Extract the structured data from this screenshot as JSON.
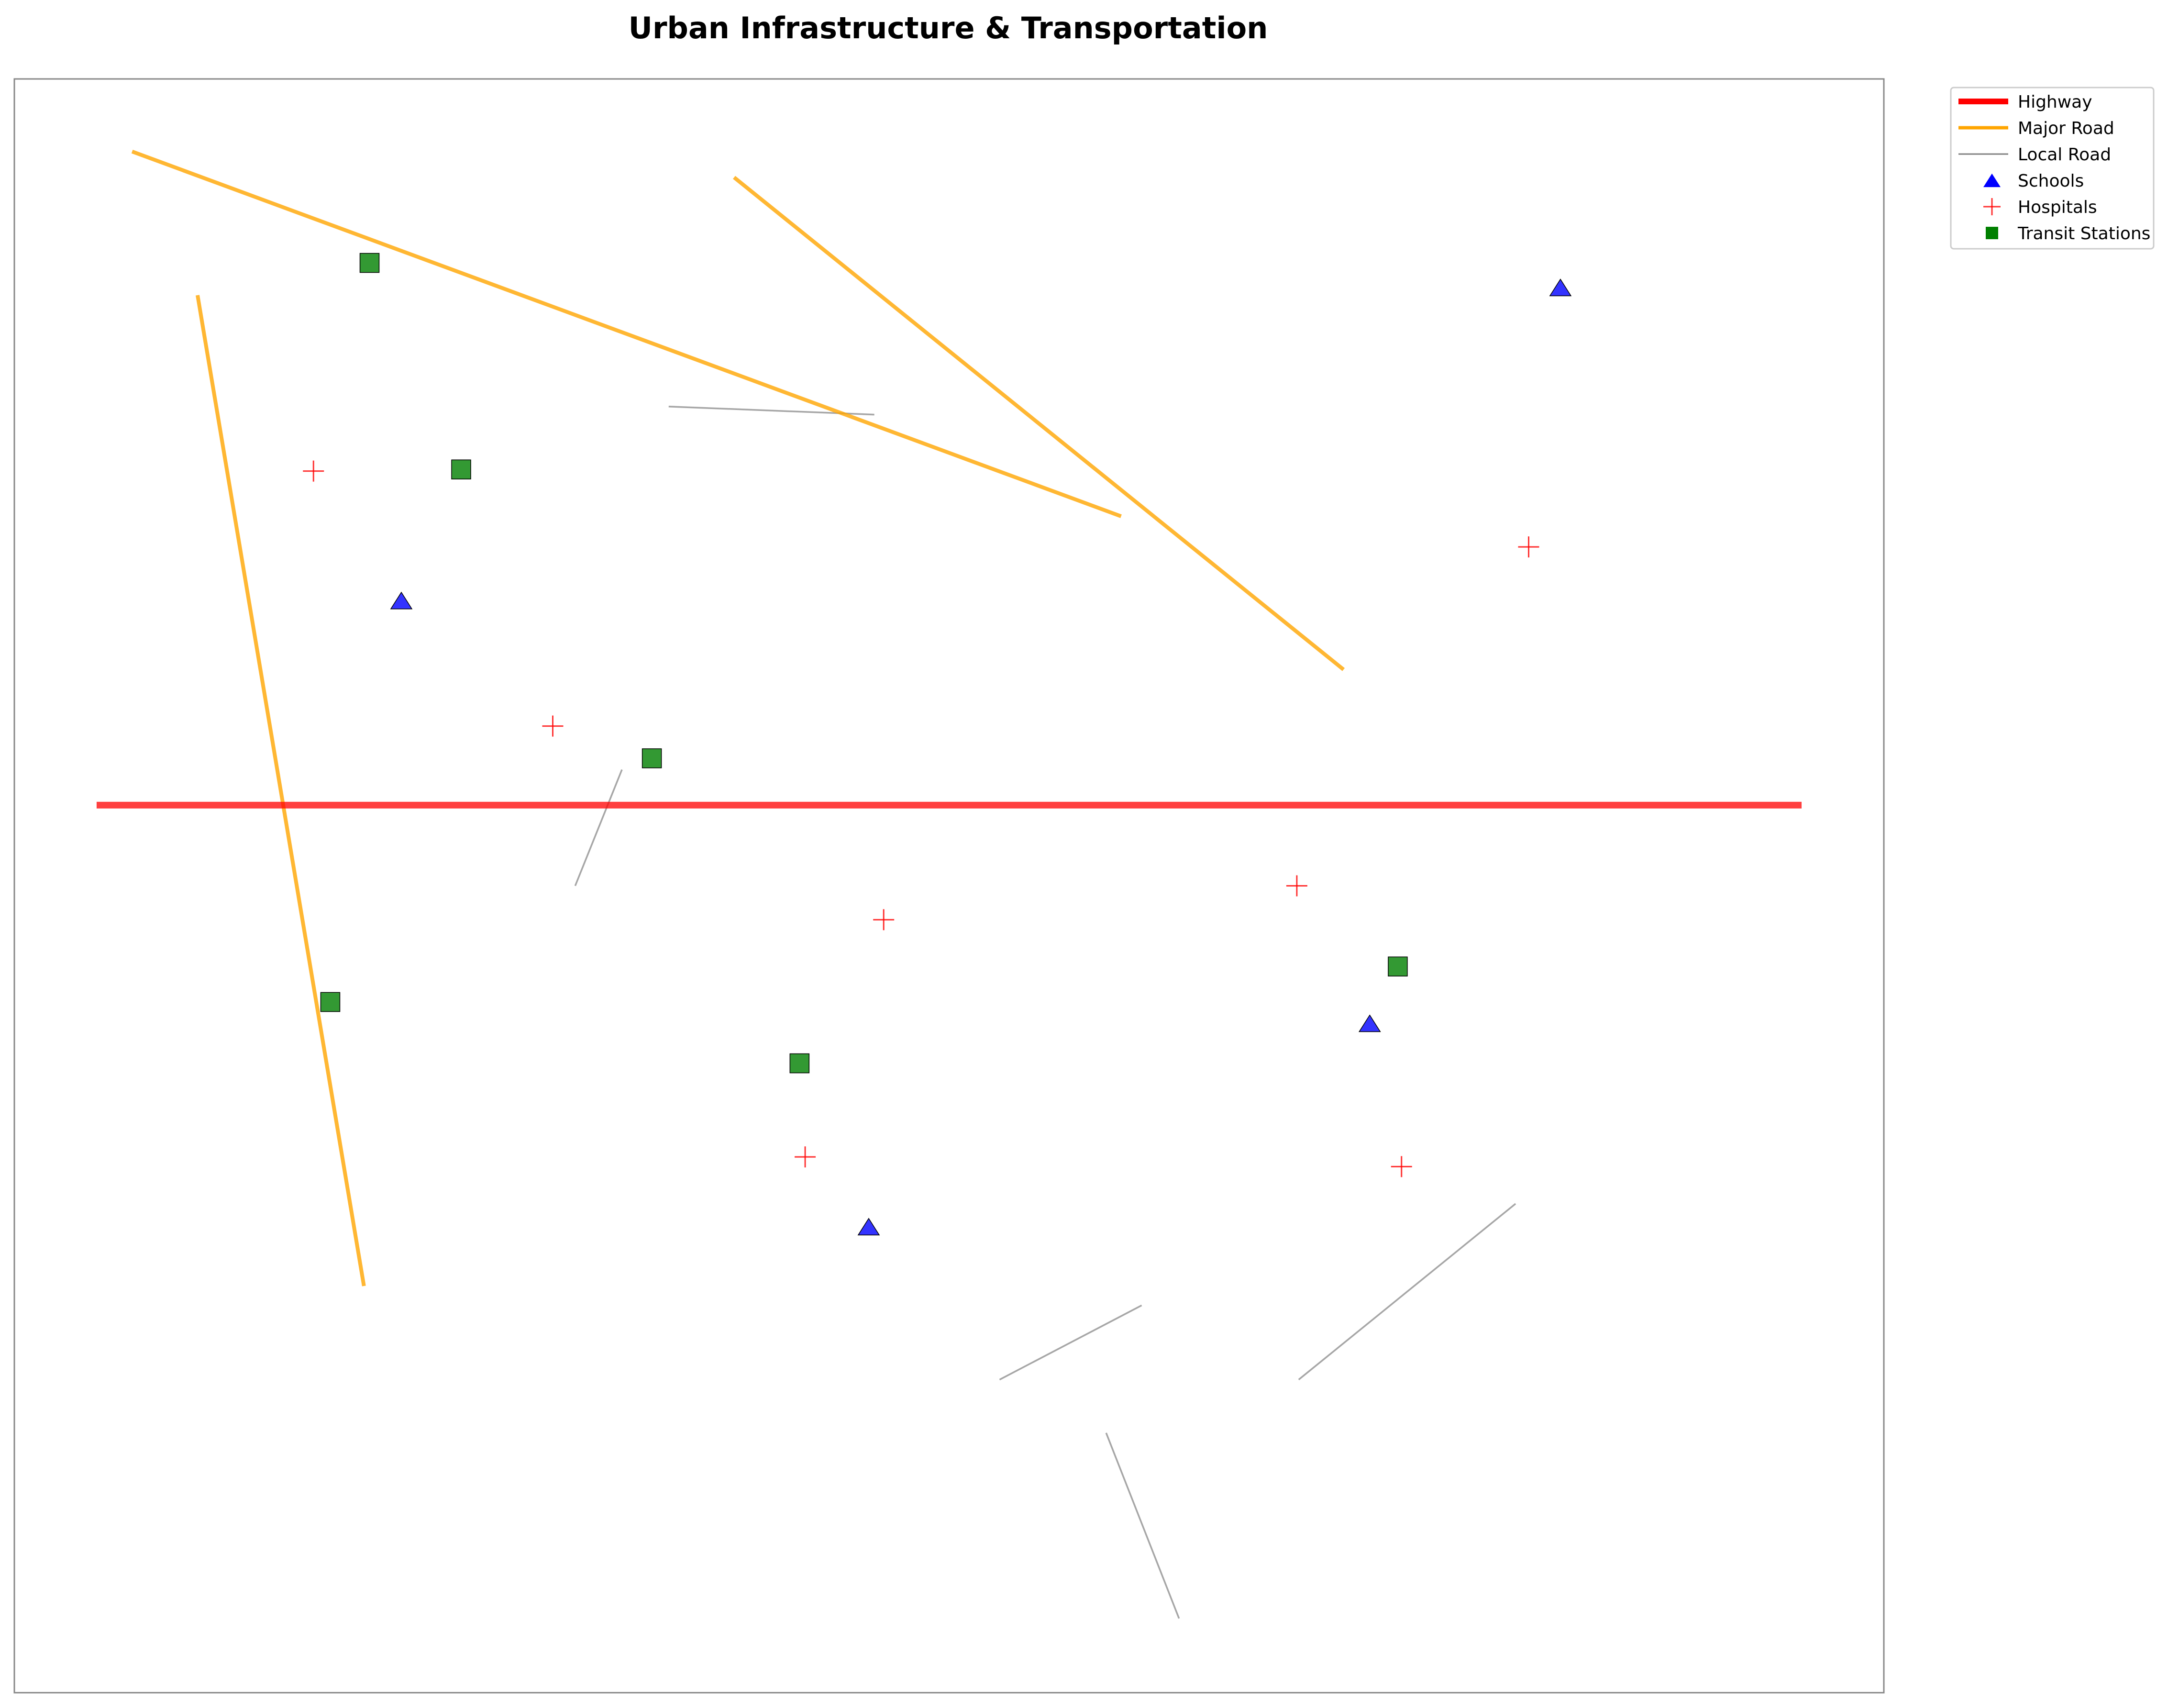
{
  "title": "Urban Infrastructure & Transportation",
  "colors": {
    "highway": "#ff0000",
    "major_road": "#ffa500",
    "local_road": "#808080",
    "school": "#0000ff",
    "hospital": "#ff0000",
    "transit": "#008000",
    "frame": "#888888"
  },
  "legend": {
    "items": [
      {
        "key": "highway",
        "label": "Highway",
        "symbol": "line-thick"
      },
      {
        "key": "major_road",
        "label": "Major Road",
        "symbol": "line-medium"
      },
      {
        "key": "local_road",
        "label": "Local Road",
        "symbol": "line-thin"
      },
      {
        "key": "school",
        "label": "Schools",
        "symbol": "triangle"
      },
      {
        "key": "hospital",
        "label": "Hospitals",
        "symbol": "plus"
      },
      {
        "key": "transit",
        "label": "Transit Stations",
        "symbol": "square"
      }
    ]
  },
  "chart_data": {
    "type": "scatter",
    "xlim": [
      0,
      100
    ],
    "ylim": [
      0,
      100
    ],
    "grid": false,
    "legend_position": "outside-top-right",
    "roads": {
      "highway": [
        {
          "x": [
            4.4,
            95.6
          ],
          "y": [
            55.0,
            55.0
          ]
        }
      ],
      "major_road": [
        {
          "x": [
            6.3,
            59.2
          ],
          "y": [
            95.5,
            72.9
          ]
        },
        {
          "x": [
            38.5,
            71.1
          ],
          "y": [
            93.9,
            63.4
          ]
        },
        {
          "x": [
            9.8,
            18.7
          ],
          "y": [
            86.6,
            25.2
          ]
        }
      ],
      "local_road": [
        {
          "x": [
            35.0,
            46.0
          ],
          "y": [
            79.7,
            79.2
          ]
        },
        {
          "x": [
            32.5,
            30.0
          ],
          "y": [
            57.2,
            50.0
          ]
        },
        {
          "x": [
            52.7,
            60.3
          ],
          "y": [
            19.4,
            24.0
          ]
        },
        {
          "x": [
            68.7,
            80.3
          ],
          "y": [
            19.4,
            30.3
          ]
        },
        {
          "x": [
            58.4,
            62.3
          ],
          "y": [
            16.1,
            4.6
          ]
        }
      ]
    },
    "schools": [
      {
        "x": 82.7,
        "y": 87.0
      },
      {
        "x": 20.7,
        "y": 67.6
      },
      {
        "x": 72.5,
        "y": 41.4
      },
      {
        "x": 45.7,
        "y": 28.8
      }
    ],
    "hospitals": [
      {
        "x": 16.0,
        "y": 75.7
      },
      {
        "x": 81.0,
        "y": 71.0
      },
      {
        "x": 28.8,
        "y": 59.9
      },
      {
        "x": 68.6,
        "y": 50.0
      },
      {
        "x": 46.5,
        "y": 47.9
      },
      {
        "x": 42.3,
        "y": 33.2
      },
      {
        "x": 74.2,
        "y": 32.6
      }
    ],
    "transit_stations": [
      {
        "x": 19.0,
        "y": 88.6
      },
      {
        "x": 23.9,
        "y": 75.8
      },
      {
        "x": 34.1,
        "y": 57.9
      },
      {
        "x": 74.0,
        "y": 45.0
      },
      {
        "x": 16.9,
        "y": 42.8
      },
      {
        "x": 42.0,
        "y": 39.0
      }
    ]
  }
}
